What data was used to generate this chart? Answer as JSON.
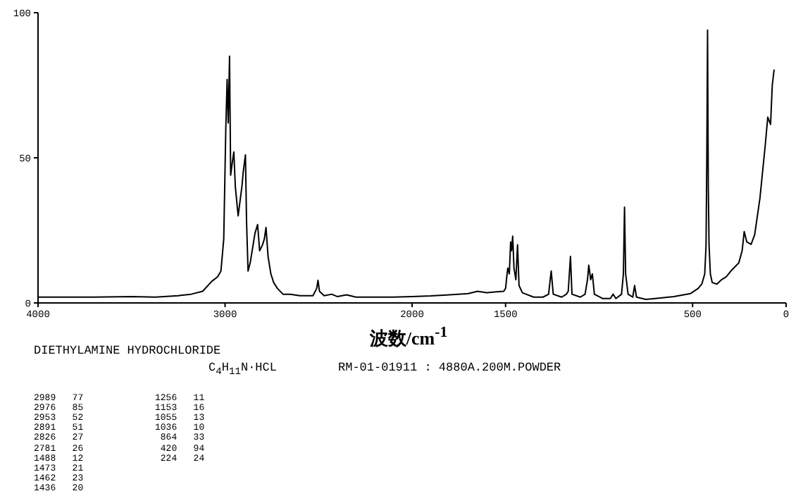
{
  "chart_data": {
    "type": "line",
    "xlabel": "波数/cm$^{-1}$",
    "annotations": [
      "DIETHYLAMINE HYDROCHLORIDE",
      "C$_{4}$H$_{11}$N·HCL",
      "RM-01-01911 : 4880A.200M.POWDER",
      "2989   77",
      "2976   85",
      "2953   52",
      "2891   51",
      "2826   27",
      "2781   26",
      "1488   12",
      "1473   21",
      "1462   23",
      "1436   20",
      "1256   11",
      "1153   16",
      "1055   13",
      "1036   10",
      " 864   33",
      " 420   94",
      " 224   24"
    ],
    "x": [
      4000,
      3700,
      3500,
      3373,
      3250,
      3182,
      3120,
      3070,
      3040,
      3022,
      3007,
      2996,
      2989,
      2983,
      2976,
      2970,
      2962,
      2953,
      2945,
      2930,
      2910,
      2903,
      2891,
      2885,
      2877,
      2865,
      2850,
      2840,
      2826,
      2815,
      2800,
      2790,
      2781,
      2770,
      2755,
      2740,
      2720,
      2690,
      2650,
      2600,
      2530,
      2510,
      2503,
      2495,
      2470,
      2430,
      2400,
      2350,
      2300,
      2200,
      2100,
      2000,
      1900,
      1800,
      1700,
      1650,
      1600,
      1550,
      1510,
      1500,
      1492,
      1488,
      1480,
      1473,
      1468,
      1462,
      1455,
      1445,
      1436,
      1428,
      1410,
      1390,
      1350,
      1300,
      1270,
      1256,
      1245,
      1200,
      1175,
      1165,
      1153,
      1145,
      1100,
      1075,
      1062,
      1055,
      1045,
      1036,
      1025,
      980,
      940,
      925,
      910,
      880,
      870,
      864,
      858,
      845,
      820,
      810,
      800,
      750,
      700,
      600,
      512,
      470,
      450,
      435,
      428,
      424,
      420,
      416,
      412,
      405,
      395,
      370,
      347,
      320,
      291,
      253,
      235,
      224,
      210,
      187,
      168,
      140,
      112,
      98,
      83,
      74,
      64
    ],
    "series": [
      {
        "color": "#000000",
        "values": [
          2,
          2,
          2.2,
          2,
          2.5,
          3,
          4,
          7.5,
          9,
          11,
          22,
          60,
          77,
          62,
          85,
          44,
          48,
          52,
          40,
          30,
          40,
          45,
          51,
          28,
          11,
          14,
          20,
          24,
          27,
          18,
          20,
          22,
          26,
          16,
          10,
          7,
          5,
          3,
          3,
          2.5,
          2.5,
          5,
          7.8,
          4,
          2.5,
          3,
          2.2,
          2.8,
          2,
          2,
          2,
          2.2,
          2.4,
          2.8,
          3.2,
          4,
          3.5,
          3.8,
          4,
          5,
          10,
          12,
          10,
          21,
          18,
          23,
          12,
          8,
          20,
          6,
          3.5,
          3,
          2,
          2,
          3,
          11,
          3,
          2,
          3,
          4,
          16,
          3,
          2,
          3,
          8,
          13,
          8,
          10,
          3,
          1.5,
          1.5,
          3,
          1.5,
          3,
          10,
          33,
          10,
          3,
          2,
          6,
          2,
          1.2,
          1.5,
          2.2,
          3.2,
          5,
          6.6,
          10,
          20,
          50,
          94,
          40,
          20,
          10,
          7,
          6.5,
          7.9,
          9,
          11.3,
          13.8,
          18,
          24.6,
          21,
          20.2,
          23.5,
          36,
          54,
          64,
          61.5,
          75,
          80.4
        ]
      }
    ],
    "xlim": [
      4000,
      0
    ],
    "xticks": [
      4000,
      3000,
      2000,
      1500,
      500,
      0
    ],
    "ylim": [
      0,
      100
    ],
    "yticks": [
      0,
      50,
      100
    ],
    "grid": false,
    "legend": false,
    "marker": "none",
    "line_style": "solid"
  }
}
